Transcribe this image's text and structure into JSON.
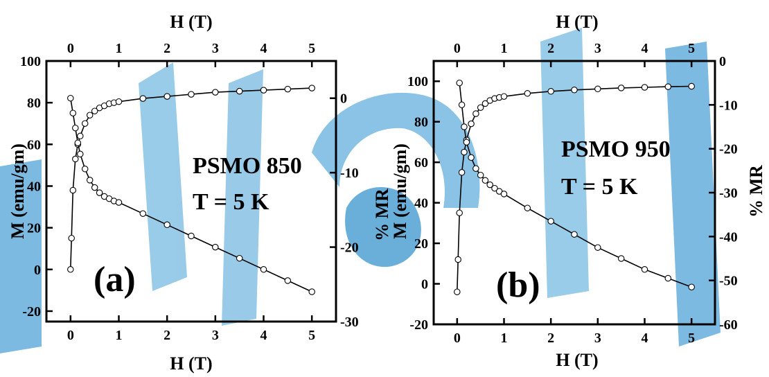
{
  "colors": {
    "watermark_blue": "#6fb3de",
    "watermark_dark": "#3b8fc7",
    "ink": "#000000",
    "marker_fill": "#ffffff"
  },
  "chart_data": [
    {
      "type": "scatter",
      "panel_label": "(a)",
      "annotation_lines": [
        "PSMO 850",
        "T = 5 K"
      ],
      "xlabel_bottom": "H (T)",
      "xlabel_top": "H (T)",
      "ylabel_left": "M (emu/gm)",
      "ylabel_right": "% MR",
      "xlim": [
        -0.5,
        5.5
      ],
      "ylim_left": [
        -25,
        100
      ],
      "ylim_right": [
        -30,
        5
      ],
      "xticks_bottom": [
        0,
        1,
        2,
        3,
        4,
        5
      ],
      "xticks_top": [
        0,
        1,
        2,
        3,
        4,
        5
      ],
      "yticks_left": [
        -20,
        0,
        20,
        40,
        60,
        80,
        100
      ],
      "yticks_right": [
        -30,
        -20,
        -10,
        0
      ],
      "grid": false,
      "series": [
        {
          "axis": "left",
          "x": [
            0.0,
            0.02,
            0.05,
            0.1,
            0.15,
            0.2,
            0.3,
            0.4,
            0.5,
            0.6,
            0.7,
            0.8,
            0.9,
            1.0,
            1.5,
            2.0,
            2.5,
            3.0,
            3.5,
            4.0,
            4.5,
            5.0
          ],
          "y": [
            0.0,
            15,
            38,
            53,
            60,
            64,
            70,
            74,
            76,
            77.5,
            78.5,
            79.5,
            80,
            80.5,
            82,
            83,
            84,
            85,
            85.5,
            86,
            86.5,
            87
          ]
        },
        {
          "axis": "right",
          "x": [
            0.0,
            0.05,
            0.1,
            0.15,
            0.2,
            0.3,
            0.4,
            0.5,
            0.6,
            0.7,
            0.8,
            0.9,
            1.0,
            1.5,
            2.0,
            2.5,
            3.0,
            3.5,
            4.0,
            4.5,
            5.0
          ],
          "y": [
            0.0,
            -2.0,
            -4.0,
            -6.0,
            -7.5,
            -9.5,
            -11.0,
            -12.0,
            -12.7,
            -13.2,
            -13.5,
            -13.8,
            -14.0,
            -15.5,
            -17.0,
            -18.5,
            -20.0,
            -21.5,
            -23.0,
            -24.5,
            -26.0
          ]
        }
      ]
    },
    {
      "type": "scatter",
      "panel_label": "(b)",
      "annotation_lines": [
        "PSMO 950",
        "T = 5 K"
      ],
      "xlabel_bottom": "H (T)",
      "xlabel_top": "H (T)",
      "ylabel_left": "M (emu/gm)",
      "ylabel_right": "% MR",
      "xlim": [
        -0.5,
        5.5
      ],
      "ylim_left": [
        -20,
        110
      ],
      "ylim_right": [
        -60,
        0
      ],
      "xticks_bottom": [
        0,
        1,
        2,
        3,
        4,
        5
      ],
      "xticks_top": [
        0,
        1,
        2,
        3,
        4,
        5
      ],
      "yticks_left": [
        -20,
        0,
        20,
        40,
        60,
        80,
        100
      ],
      "yticks_right": [
        -60,
        -50,
        -40,
        -30,
        -20,
        -10,
        0
      ],
      "grid": false,
      "series": [
        {
          "axis": "left",
          "x": [
            0.0,
            0.02,
            0.05,
            0.1,
            0.15,
            0.2,
            0.3,
            0.4,
            0.5,
            0.6,
            0.7,
            0.8,
            0.9,
            1.0,
            1.5,
            2.0,
            2.5,
            3.0,
            3.5,
            4.0,
            4.5,
            5.0
          ],
          "y": [
            -4,
            12,
            35,
            55,
            65,
            71,
            79,
            84,
            87,
            89,
            90.5,
            91.5,
            92,
            92.5,
            94,
            95,
            95.7,
            96.2,
            96.7,
            97,
            97.3,
            97.5
          ]
        },
        {
          "axis": "right",
          "x": [
            0.05,
            0.1,
            0.15,
            0.2,
            0.3,
            0.4,
            0.5,
            0.6,
            0.7,
            0.8,
            0.9,
            1.0,
            1.5,
            2.0,
            2.5,
            3.0,
            3.5,
            4.0,
            4.5,
            5.0
          ],
          "y": [
            -5.0,
            -10.0,
            -15.0,
            -18.5,
            -22.0,
            -24.5,
            -26.0,
            -27.2,
            -28.2,
            -29.0,
            -29.7,
            -30.3,
            -33.5,
            -36.5,
            -39.5,
            -42.5,
            -45.0,
            -47.5,
            -49.5,
            -51.5
          ]
        }
      ]
    }
  ]
}
